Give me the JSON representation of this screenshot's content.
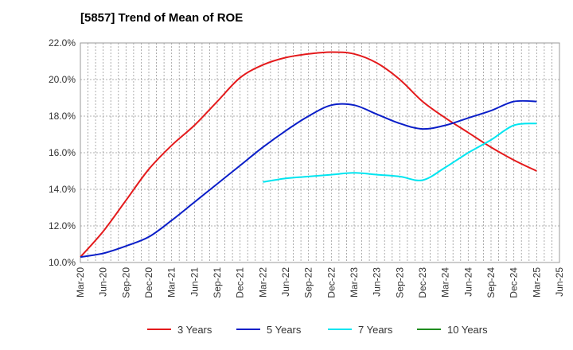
{
  "chart_data": {
    "type": "line",
    "title": "[5857]  Trend of Mean of ROE",
    "x_ticks": [
      "Mar-20",
      "Jun-20",
      "Sep-20",
      "Dec-20",
      "Mar-21",
      "Jun-21",
      "Sep-21",
      "Dec-21",
      "Mar-22",
      "Jun-22",
      "Sep-22",
      "Dec-22",
      "Mar-23",
      "Jun-23",
      "Sep-23",
      "Dec-23",
      "Mar-24",
      "Jun-24",
      "Sep-24",
      "Dec-24",
      "Mar-25",
      "Jun-25"
    ],
    "y_ticks": [
      "10.0%",
      "12.0%",
      "14.0%",
      "16.0%",
      "18.0%",
      "20.0%",
      "22.0%"
    ],
    "ylim": [
      10,
      22
    ],
    "grid": true,
    "legend_position": "bottom",
    "series": [
      {
        "name": "3 Years",
        "color": "#e41a1c",
        "start_index": 0,
        "values": [
          10.3,
          11.7,
          13.4,
          15.1,
          16.4,
          17.5,
          18.8,
          20.1,
          20.8,
          21.2,
          21.4,
          21.5,
          21.4,
          20.9,
          20.0,
          18.8,
          17.9,
          17.1,
          16.3,
          15.6,
          15.0
        ]
      },
      {
        "name": "5 Years",
        "color": "#0a1ec8",
        "start_index": 0,
        "values": [
          10.3,
          10.5,
          10.9,
          11.4,
          12.3,
          13.3,
          14.3,
          15.3,
          16.3,
          17.2,
          18.0,
          18.6,
          18.6,
          18.1,
          17.6,
          17.3,
          17.5,
          17.9,
          18.3,
          18.8,
          18.8
        ]
      },
      {
        "name": "7 Years",
        "color": "#00e5f0",
        "start_index": 8,
        "values": [
          14.4,
          14.6,
          14.7,
          14.8,
          14.9,
          14.8,
          14.7,
          14.5,
          15.2,
          16.0,
          16.7,
          17.5,
          17.6
        ]
      },
      {
        "name": "10 Years",
        "color": "#1e8c1e",
        "start_index": 0,
        "values": []
      }
    ]
  }
}
